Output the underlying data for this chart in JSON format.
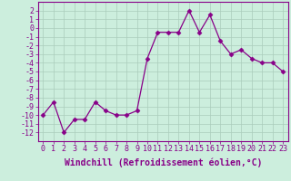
{
  "x": [
    0,
    1,
    2,
    3,
    4,
    5,
    6,
    7,
    8,
    9,
    10,
    11,
    12,
    13,
    14,
    15,
    16,
    17,
    18,
    19,
    20,
    21,
    22,
    23
  ],
  "y": [
    -10.0,
    -8.5,
    -12.0,
    -10.5,
    -10.5,
    -8.5,
    -9.5,
    -10.0,
    -10.0,
    -9.5,
    -3.5,
    -0.5,
    -0.5,
    -0.5,
    2.0,
    -0.5,
    1.5,
    -1.5,
    -3.0,
    -2.5,
    -3.5,
    -4.0,
    -4.0,
    -5.0
  ],
  "line_color": "#880088",
  "marker": "D",
  "marker_size": 2.5,
  "bg_color": "#cceedd",
  "grid_color": "#aaccbb",
  "xlabel": "Windchill (Refroidissement éolien,°C)",
  "xlabel_fontsize": 7,
  "xlim": [
    -0.5,
    23.5
  ],
  "ylim": [
    -13,
    3
  ],
  "ytick_values": [
    2,
    1,
    0,
    -1,
    -2,
    -3,
    -4,
    -5,
    -6,
    -7,
    -8,
    -9,
    -10,
    -11,
    -12
  ],
  "xtick_values": [
    0,
    1,
    2,
    3,
    4,
    5,
    6,
    7,
    8,
    9,
    10,
    11,
    12,
    13,
    14,
    15,
    16,
    17,
    18,
    19,
    20,
    21,
    22,
    23
  ],
  "tick_fontsize": 6,
  "tick_color": "#880088",
  "spine_color": "#880088"
}
